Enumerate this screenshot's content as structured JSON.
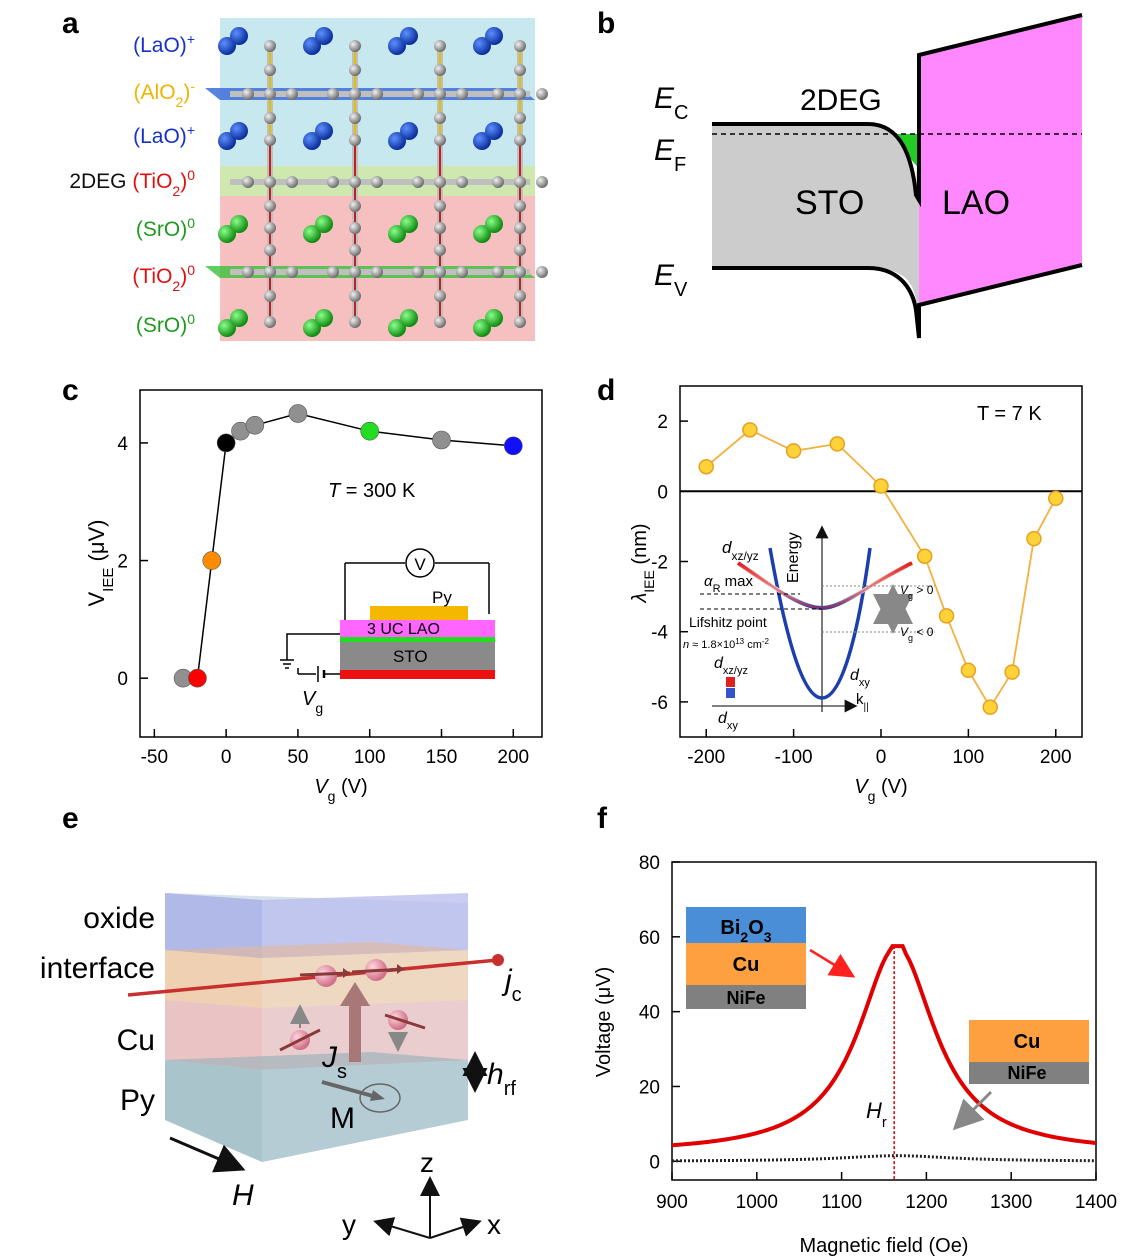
{
  "panels": {
    "a": {
      "label": "a",
      "layers": [
        {
          "pre": "",
          "main": "(LaO)",
          "sub": "",
          "sup": "+",
          "color": "#1432c8"
        },
        {
          "pre": "",
          "main": "(AlO",
          "sub": "2",
          "post": ")",
          "sup": "-",
          "color": "#f0b400"
        },
        {
          "pre": "",
          "main": "(LaO)",
          "sub": "",
          "sup": "+",
          "color": "#1432c8"
        },
        {
          "pre": "2DEG ",
          "main": "(TiO",
          "sub": "2",
          "post": ")",
          "sup": "0",
          "color": "#e01010"
        },
        {
          "pre": "",
          "main": "(SrO)",
          "sub": "",
          "sup": "0",
          "color": "#1f9a1f"
        },
        {
          "pre": "",
          "main": "(TiO",
          "sub": "2",
          "post": ")",
          "sup": "0",
          "color": "#e01010"
        },
        {
          "pre": "",
          "main": "(SrO)",
          "sub": "",
          "sup": "0",
          "color": "#1f9a1f"
        }
      ]
    },
    "b": {
      "label": "b",
      "ec": "E",
      "ec_sub": "C",
      "ef": "E",
      "ef_sub": "F",
      "ev": "E",
      "ev_sub": "V",
      "twodeg": "2DEG",
      "sto": "STO",
      "lao": "LAO"
    },
    "c": {
      "label": "c",
      "temperature": "T = 300 K",
      "ylabel_main": "V",
      "ylabel_sub": "IEE",
      "ylabel_unit": " (μV)",
      "xlabel_main": "V",
      "xlabel_sub": "g",
      "xlabel_unit": " (V)",
      "inset": {
        "voltmeter": "V",
        "py": "Py",
        "lao": "3 UC LAO",
        "sto": "STO",
        "vg": "V",
        "vg_sub": "g"
      }
    },
    "d": {
      "label": "d",
      "temperature": "T = 7 K",
      "ylabel_main": "λ",
      "ylabel_sub": "IEE",
      "ylabel_unit": " (nm)",
      "xlabel_main": "V",
      "xlabel_sub": "g",
      "xlabel_unit": " (V)",
      "inset": {
        "energy": "Energy",
        "dxz": "d",
        "dxz_sub": "xz/yz",
        "alpha": "α",
        "alpha_sub": "R",
        "alpha_post": " max",
        "lifshitz": "Lifshitz point",
        "density": "n ≈ 1.8×10",
        "density_sup": "13",
        "density_unit": " cm",
        "density_unit_sup": "-2",
        "vgpos": "V",
        "vgpos_sub": "g",
        "vgpos_post": " > 0",
        "vgneg": "V",
        "vgneg_sub": "g",
        "vgneg_post": " < 0",
        "dxy": "d",
        "dxy_sub": "xy",
        "legend_top": "d",
        "legend_top_sub": "xz/yz",
        "legend_bot": "d",
        "legend_bot_sub": "xy",
        "k": "k",
        "k_sub": "||"
      }
    },
    "e": {
      "label": "e",
      "oxide": "oxide",
      "interface": "interface",
      "cu": "Cu",
      "py": "Py",
      "jc": "j",
      "jc_sub": "c",
      "js": "J",
      "js_sub": "s",
      "hrf": "h",
      "hrf_sub": "rf",
      "m": "M",
      "h": "H",
      "ax_z": "z",
      "ax_y": "y",
      "ax_x": "x"
    },
    "f": {
      "label": "f",
      "ylabel": "Voltage (μV)",
      "xlabel": "Magnetic field (Oe)",
      "hr": "H",
      "hr_sub": "r",
      "stack1": {
        "top": "Bi",
        "top_sub1": "2",
        "top_mid": "O",
        "top_sub2": "3",
        "mid": "Cu",
        "bot": "NiFe"
      },
      "stack2": {
        "mid": "Cu",
        "bot": "NiFe"
      }
    }
  },
  "chart_data": [
    {
      "panel": "c",
      "type": "scatter",
      "x": [
        -30,
        -20,
        -10,
        0,
        10,
        20,
        50,
        100,
        150,
        200
      ],
      "y": [
        0.0,
        0.0,
        2.0,
        4.0,
        4.2,
        4.3,
        4.5,
        4.2,
        4.05,
        3.95
      ],
      "colors": [
        "#909090",
        "#ff0000",
        "#ff8c00",
        "#000000",
        "#909090",
        "#909090",
        "#909090",
        "#22dd22",
        "#909090",
        "#1010ff"
      ],
      "xticks": [
        "-50",
        "0",
        "50",
        "100",
        "150",
        "200"
      ],
      "yticks": [
        "0",
        "2",
        "4"
      ],
      "xlim": [
        -60,
        220
      ],
      "ylim": [
        -1,
        4.9
      ]
    },
    {
      "panel": "d",
      "type": "line",
      "x": [
        -200,
        -150,
        -100,
        -50,
        0,
        50,
        75,
        100,
        125,
        150,
        175,
        200
      ],
      "y": [
        0.7,
        1.75,
        1.15,
        1.35,
        0.15,
        -1.85,
        -3.55,
        -5.1,
        -6.15,
        -5.15,
        -1.35,
        -0.2
      ],
      "xticks": [
        "-200",
        "-100",
        "0",
        "100",
        "200"
      ],
      "yticks": [
        "-6",
        "-4",
        "-2",
        "0",
        "2"
      ],
      "xlim": [
        -230,
        230
      ],
      "ylim": [
        -7,
        3
      ]
    },
    {
      "panel": "f",
      "type": "line",
      "series": [
        {
          "color": "#e00000",
          "center": 1165,
          "peak": 57.5,
          "base": 2.0,
          "halfwidth": 55
        },
        {
          "color": "#222222",
          "center": 1165,
          "peak": 1.5,
          "base": 0.0,
          "halfwidth": 80
        }
      ],
      "xticks": [
        "900",
        "1000",
        "1100",
        "1200",
        "1300",
        "1400"
      ],
      "yticks": [
        "0",
        "20",
        "40",
        "60",
        "80"
      ],
      "xlim": [
        900,
        1400
      ],
      "ylim": [
        -5,
        80
      ]
    }
  ]
}
